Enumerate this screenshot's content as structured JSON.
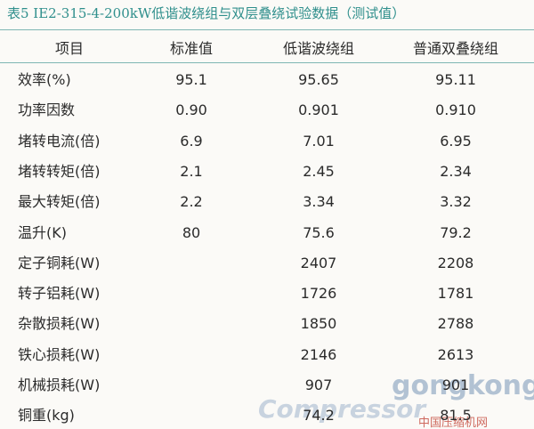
{
  "header": {
    "title": "表5 IE2-315-4-200kW低谐波绕组与双层叠绕试验数据（测试值）"
  },
  "table": {
    "columns": [
      "项目",
      "标准值",
      "低谐波绕组",
      "普通双叠绕组"
    ],
    "rows": [
      [
        "效率(%)",
        "95.1",
        "95.65",
        "95.11"
      ],
      [
        "功率因数",
        "0.90",
        "0.901",
        "0.910"
      ],
      [
        "堵转电流(倍)",
        "6.9",
        "7.01",
        "6.95"
      ],
      [
        "堵转转矩(倍)",
        "2.1",
        "2.45",
        "2.34"
      ],
      [
        "最大转矩(倍)",
        "2.2",
        "3.34",
        "3.32"
      ],
      [
        "温升(K)",
        "80",
        "75.6",
        "79.2"
      ],
      [
        "定子铜耗(W)",
        null,
        "2407",
        "2208"
      ],
      [
        "转子铝耗(W)",
        null,
        "1726",
        "1781"
      ],
      [
        "杂散损耗(W)",
        null,
        "1850",
        "2788"
      ],
      [
        "铁心损耗(W)",
        null,
        "2146",
        "2613"
      ],
      [
        "机械损耗(W)",
        null,
        "907",
        "901"
      ],
      [
        "铜重(kg)",
        null,
        "74.2",
        "81.5"
      ]
    ]
  },
  "watermarks": [
    "gongkong",
    "Compressor",
    "中国压缩机网"
  ]
}
